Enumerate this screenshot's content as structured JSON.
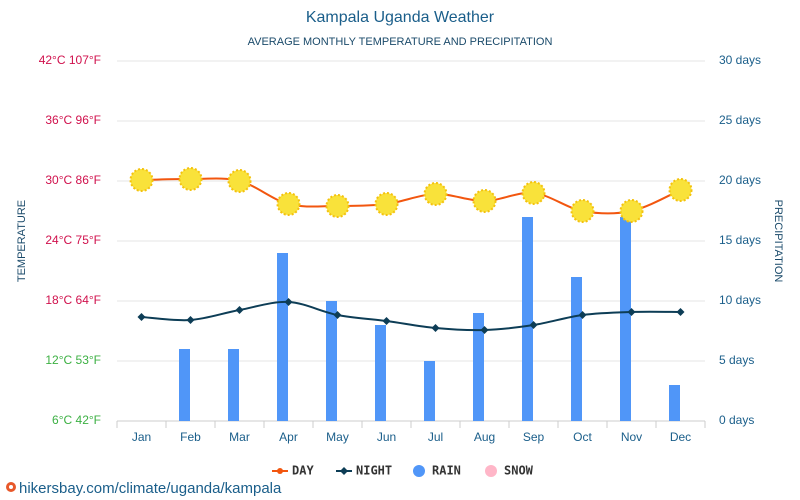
{
  "chart_data": {
    "type": "combo",
    "title": "Kampala Uganda Weather",
    "subtitle": "AVERAGE MONTHLY TEMPERATURE AND PRECIPITATION",
    "y_label": "TEMPERATURE",
    "y2_label": "PRECIPITATION",
    "source": "hikersbay.com/climate/uganda/kampala",
    "categories": [
      "Jan",
      "Feb",
      "Mar",
      "Apr",
      "May",
      "Jun",
      "Jul",
      "Aug",
      "Sep",
      "Oct",
      "Nov",
      "Dec"
    ],
    "ylim": [
      6,
      42
    ],
    "yticks": [
      {
        "value": 6,
        "label": "6°C 42°F"
      },
      {
        "value": 12,
        "label": "12°C 53°F"
      },
      {
        "value": 18,
        "label": "18°C 64°F"
      },
      {
        "value": 24,
        "label": "24°C 75°F"
      },
      {
        "value": 30,
        "label": "30°C 86°F"
      },
      {
        "value": 36,
        "label": "36°C 96°F"
      },
      {
        "value": 42,
        "label": "42°C 107°F"
      }
    ],
    "ytick_colors": [
      "#3cb043",
      "#3cb043",
      "#d0104c",
      "#d0104c",
      "#d0104c",
      "#d0104c",
      "#d0104c"
    ],
    "y2lim": [
      0,
      30
    ],
    "y2ticks": [
      {
        "value": 0,
        "label": "0 days"
      },
      {
        "value": 5,
        "label": "5 days"
      },
      {
        "value": 10,
        "label": "10 days"
      },
      {
        "value": 15,
        "label": "15 days"
      },
      {
        "value": 20,
        "label": "20 days"
      },
      {
        "value": 25,
        "label": "25 days"
      },
      {
        "value": 30,
        "label": "30 days"
      }
    ],
    "grid": true,
    "legend": "bottom",
    "series": [
      {
        "name": "DAY",
        "type": "line",
        "color": "#f2560f",
        "values": [
          30.1,
          30.2,
          30,
          27.7,
          27.5,
          27.7,
          28.7,
          28,
          28.8,
          27,
          27,
          29.1
        ]
      },
      {
        "name": "NIGHT",
        "type": "line",
        "marker": "diamond",
        "color": "#0d3d56",
        "values": [
          16.4,
          16.1,
          17.1,
          17.9,
          16.6,
          16,
          15.3,
          15.1,
          15.6,
          16.6,
          16.9,
          16.9
        ]
      },
      {
        "name": "RAIN",
        "type": "bar",
        "axis": "y2",
        "color": "#5096f8",
        "values": [
          0,
          6,
          6,
          14,
          10,
          8,
          5,
          9,
          17,
          12,
          17,
          3
        ]
      },
      {
        "name": "SNOW",
        "type": "bar",
        "axis": "y2",
        "color": "#ffb6c8",
        "values": [
          0,
          0,
          0,
          0,
          0,
          0,
          0,
          0,
          0,
          0,
          0,
          0
        ]
      }
    ]
  }
}
